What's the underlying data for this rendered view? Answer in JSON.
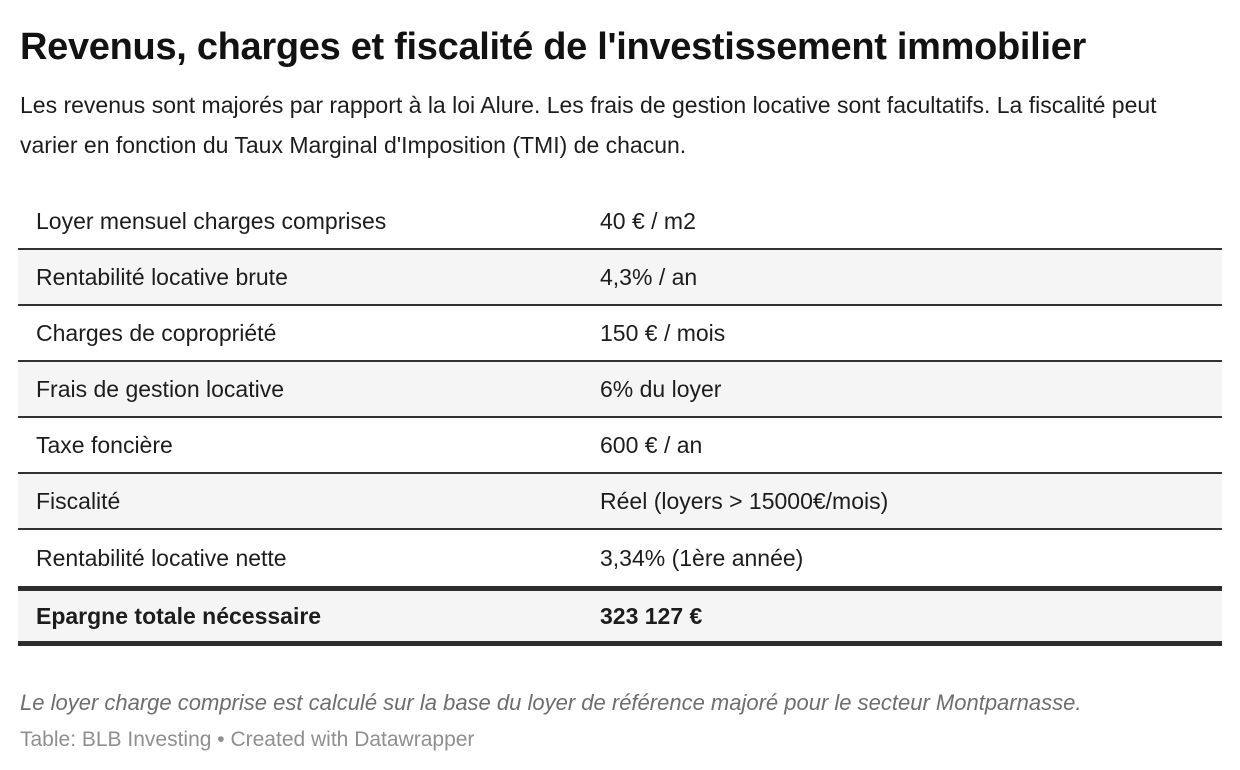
{
  "chart_data": {
    "type": "table",
    "title": "Revenus, charges et fiscalité de l'investissement immobilier",
    "description": "Les revenus sont majorés par rapport à la loi Alure. Les frais de gestion locative sont facultatifs. La fiscalité peut varier en fonction du Taux Marginal d'Imposition (TMI) de chacun.",
    "rows": [
      {
        "label": "Loyer mensuel charges comprises",
        "value": "40 € / m2",
        "emphasis": false
      },
      {
        "label": "Rentabilité locative brute",
        "value": "4,3% / an",
        "emphasis": false
      },
      {
        "label": "Charges de copropriété",
        "value": "150 € / mois",
        "emphasis": false
      },
      {
        "label": "Frais de gestion locative",
        "value": "6% du loyer",
        "emphasis": false
      },
      {
        "label": "Taxe foncière",
        "value": "600 € / an",
        "emphasis": false
      },
      {
        "label": "Fiscalité",
        "value": "Réel (loyers > 15000€/mois)",
        "emphasis": false
      },
      {
        "label": "Rentabilité locative nette",
        "value": "3,34% (1ère année)",
        "emphasis": false
      },
      {
        "label": "Epargne totale nécessaire",
        "value": "323 127 €",
        "emphasis": true
      }
    ],
    "footnote": "Le loyer charge comprise est calculé sur la base du loyer de référence majoré pour le secteur Montparnasse.",
    "credit": "Table: BLB Investing • Created with Datawrapper"
  },
  "colors": {
    "title_text": "#121212",
    "body_text": "#1d1d1d",
    "alt_row_bg": "#f5f5f5",
    "separator": "#333333",
    "strong_border": "#2e2e2e",
    "footnote_text": "#6e6e6e",
    "credit_text": "#8f8f8f"
  }
}
